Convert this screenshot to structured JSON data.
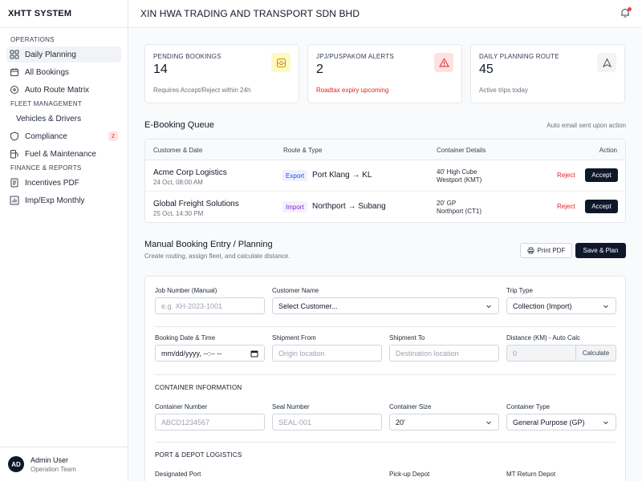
{
  "app": {
    "name": "XHTT SYSTEM"
  },
  "header": {
    "company": "XIN HWA TRADING AND TRANSPORT SDN BHD"
  },
  "sidebar": {
    "sections": [
      {
        "title": "OPERATIONS",
        "items": [
          {
            "label": "Daily Planning",
            "icon": "grid-icon",
            "active": true
          },
          {
            "label": "All Bookings",
            "icon": "calendar-icon"
          },
          {
            "label": "Auto Route Matrix",
            "icon": "route-icon"
          }
        ]
      },
      {
        "title": "FLEET MANAGEMENT",
        "items": [
          {
            "label": "Vehicles & Drivers"
          },
          {
            "label": "Compliance",
            "icon": "shield-icon",
            "badge": "2"
          },
          {
            "label": "Fuel & Maintenance",
            "icon": "fuel-icon"
          }
        ]
      },
      {
        "title": "FINANCE & REPORTS",
        "items": [
          {
            "label": "Incentives PDF",
            "icon": "document-icon"
          },
          {
            "label": "Imp/Exp Monthly",
            "icon": "bar-chart-icon"
          }
        ]
      }
    ],
    "user": {
      "initials": "AD",
      "name": "Admin User",
      "role": "Operation Team"
    }
  },
  "stats": [
    {
      "label": "PENDING BOOKINGS",
      "value": "14",
      "sub": "Requires Accept/Reject within 24h",
      "icon": "inbox-icon",
      "accent": "#fef9c3"
    },
    {
      "label": "JPJ/PUSPAKOM ALERTS",
      "value": "2",
      "sub": "Roadtax expiry upcoming",
      "icon": "warning-icon",
      "accent": "#fee2e2"
    },
    {
      "label": "DAILY PLANNING ROUTE",
      "value": "45",
      "sub": "Active trips today",
      "icon": "navigation-icon",
      "accent": "#f3f4f6"
    }
  ],
  "queue": {
    "title": "E-Booking Queue",
    "note": "Auto email sent upon action",
    "columns": [
      "Customer & Date",
      "Route & Type",
      "Container Details",
      "Action"
    ],
    "rows": [
      {
        "customer": "Acme Corp Logistics",
        "date": "24 Oct, 08:00 AM",
        "type": "Export",
        "route": "Port Klang → KL",
        "container": "40' High Cube",
        "location": "Westport (KMT)",
        "reject": "Reject",
        "accept": "Accept"
      },
      {
        "customer": "Global Freight Solutions",
        "date": "25 Oct, 14:30 PM",
        "type": "Import",
        "route": "Northport → Subang",
        "container": "20' GP",
        "location": "Northport (CT1)",
        "reject": "Reject",
        "accept": "Accept"
      }
    ]
  },
  "manual": {
    "title": "Manual Booking Entry / Planning",
    "subtitle": "Create routing, assign fleet, and calculate distance.",
    "print_label": "Print PDF",
    "save_label": "Save & Plan",
    "fields": {
      "job_number": {
        "label": "Job Number (Manual)",
        "placeholder": "e.g. XH-2023-1001"
      },
      "customer": {
        "label": "Customer Name",
        "value": "Select Customer..."
      },
      "trip_type": {
        "label": "Trip Type",
        "value": "Collection (Import)"
      },
      "booking_dt": {
        "label": "Booking Date & Time",
        "value": "mm/dd/yyyy, --:-- --"
      },
      "ship_from": {
        "label": "Shipment From",
        "placeholder": "Origin location"
      },
      "ship_to": {
        "label": "Shipment To",
        "placeholder": "Destination location"
      },
      "distance": {
        "label": "Distance (KM) - Auto Calc",
        "value": "0",
        "button": "Calculate"
      }
    },
    "container_section": "CONTAINER INFORMATION",
    "container_fields": {
      "number": {
        "label": "Container Number",
        "placeholder": "ABCD1234567"
      },
      "seal": {
        "label": "Seal Number",
        "placeholder": "SEAL-001"
      },
      "size": {
        "label": "Container Size",
        "value": "20'"
      },
      "type": {
        "label": "Container Type",
        "value": "General Purpose (GP)"
      }
    },
    "port_section": "PORT & DEPOT LOGISTICS",
    "port_fields": {
      "port": {
        "label": "Designated Port"
      },
      "pickup": {
        "label": "Pick-up Depot"
      },
      "mt_return": {
        "label": "MT Return Depot"
      }
    }
  }
}
